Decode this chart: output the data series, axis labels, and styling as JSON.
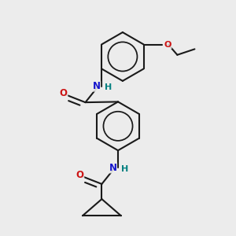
{
  "background_color": "#ececec",
  "bond_color": "#1a1a1a",
  "N_color": "#1414cc",
  "O_color": "#cc1414",
  "H_color": "#008080",
  "line_width": 1.5,
  "figsize": [
    3.0,
    3.0
  ],
  "dpi": 100,
  "xlim": [
    0.0,
    10.0
  ],
  "ylim": [
    0.0,
    10.0
  ]
}
